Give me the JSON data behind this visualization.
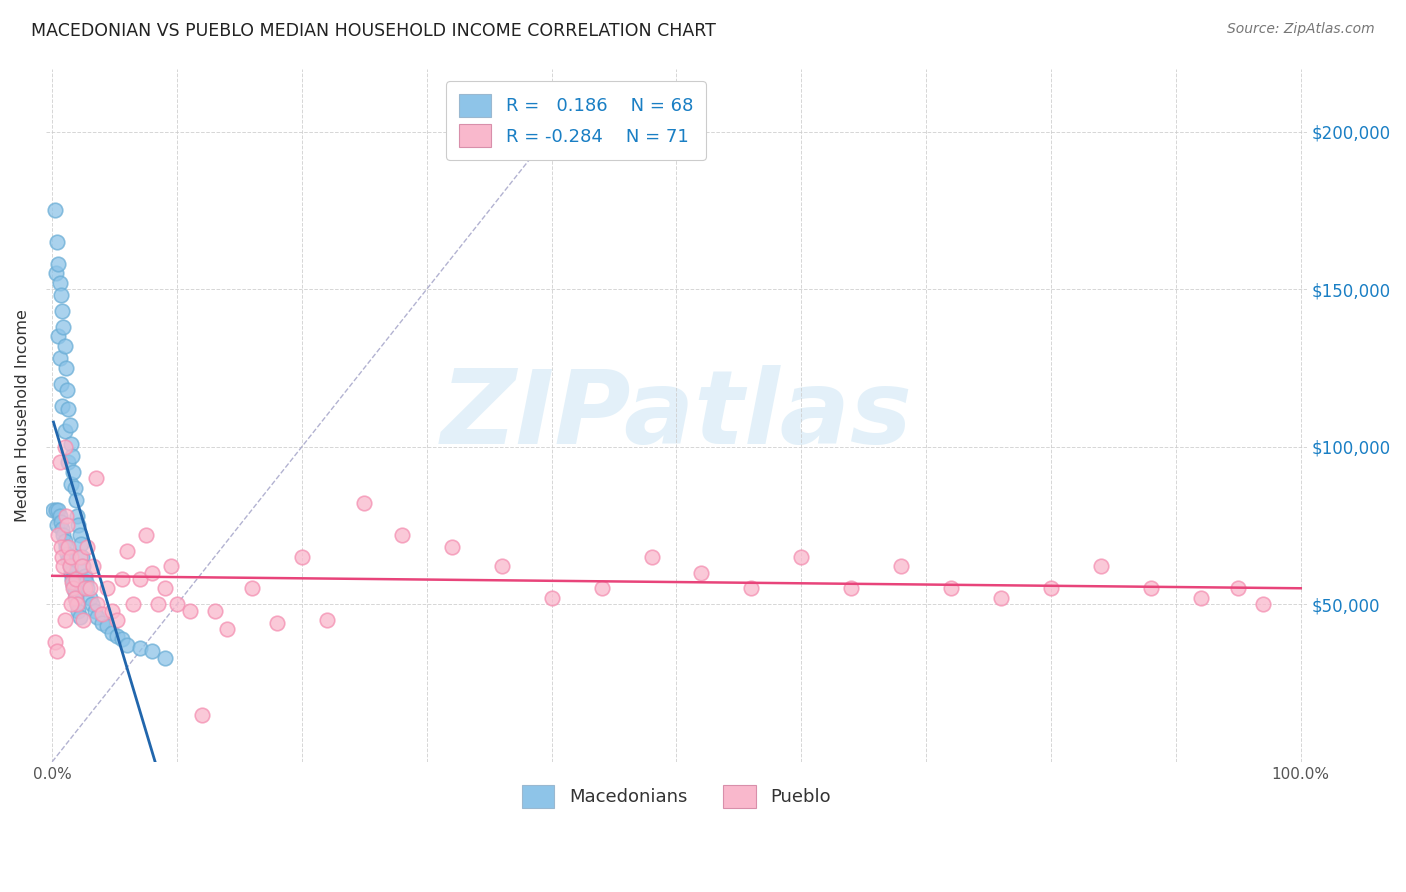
{
  "title": "MACEDONIAN VS PUEBLO MEDIAN HOUSEHOLD INCOME CORRELATION CHART",
  "source": "Source: ZipAtlas.com",
  "ylabel": "Median Household Income",
  "y_tick_labels": [
    "$50,000",
    "$100,000",
    "$150,000",
    "$200,000"
  ],
  "y_tick_values": [
    50000,
    100000,
    150000,
    200000
  ],
  "ylim": [
    0,
    220000
  ],
  "xlim": [
    -0.005,
    1.005
  ],
  "blue_R": 0.186,
  "blue_N": 68,
  "pink_R": -0.284,
  "pink_N": 71,
  "blue_color": "#8ec4e8",
  "blue_edge_color": "#6baed6",
  "blue_line_color": "#2166ac",
  "pink_color": "#f9b8cc",
  "pink_edge_color": "#f48fb1",
  "pink_line_color": "#e8447a",
  "legend_blue_label": "Macedonians",
  "legend_pink_label": "Pueblo",
  "watermark": "ZIPatlas",
  "grid_color": "#cccccc",
  "ref_line_color": "#aaaacc",
  "macedonian_x": [
    0.001,
    0.002,
    0.003,
    0.003,
    0.004,
    0.004,
    0.005,
    0.005,
    0.005,
    0.006,
    0.006,
    0.006,
    0.007,
    0.007,
    0.007,
    0.008,
    0.008,
    0.008,
    0.009,
    0.009,
    0.01,
    0.01,
    0.01,
    0.011,
    0.011,
    0.012,
    0.012,
    0.013,
    0.013,
    0.013,
    0.014,
    0.014,
    0.015,
    0.015,
    0.015,
    0.016,
    0.016,
    0.017,
    0.017,
    0.018,
    0.018,
    0.019,
    0.019,
    0.02,
    0.02,
    0.021,
    0.021,
    0.022,
    0.022,
    0.023,
    0.024,
    0.025,
    0.026,
    0.027,
    0.028,
    0.03,
    0.032,
    0.034,
    0.036,
    0.04,
    0.044,
    0.048,
    0.052,
    0.056,
    0.06,
    0.07,
    0.08,
    0.09
  ],
  "macedonian_y": [
    80000,
    175000,
    155000,
    80000,
    165000,
    75000,
    158000,
    135000,
    80000,
    152000,
    128000,
    78000,
    148000,
    120000,
    76000,
    143000,
    113000,
    74000,
    138000,
    72000,
    132000,
    105000,
    70000,
    125000,
    68000,
    118000,
    66000,
    112000,
    95000,
    64000,
    107000,
    62000,
    101000,
    88000,
    60000,
    97000,
    58000,
    92000,
    56000,
    87000,
    54000,
    83000,
    52000,
    78000,
    50000,
    75000,
    48000,
    72000,
    46000,
    69000,
    65000,
    62000,
    59000,
    57000,
    55000,
    52000,
    50000,
    48000,
    46000,
    44000,
    43000,
    41000,
    40000,
    39000,
    37000,
    36000,
    35000,
    33000
  ],
  "pueblo_x": [
    0.002,
    0.004,
    0.005,
    0.006,
    0.007,
    0.008,
    0.009,
    0.01,
    0.011,
    0.012,
    0.013,
    0.014,
    0.015,
    0.016,
    0.017,
    0.018,
    0.019,
    0.02,
    0.022,
    0.024,
    0.026,
    0.028,
    0.03,
    0.033,
    0.036,
    0.04,
    0.044,
    0.048,
    0.052,
    0.056,
    0.06,
    0.065,
    0.07,
    0.075,
    0.08,
    0.085,
    0.09,
    0.095,
    0.1,
    0.11,
    0.12,
    0.13,
    0.14,
    0.16,
    0.18,
    0.2,
    0.22,
    0.25,
    0.28,
    0.32,
    0.36,
    0.4,
    0.44,
    0.48,
    0.52,
    0.56,
    0.6,
    0.64,
    0.68,
    0.72,
    0.76,
    0.8,
    0.84,
    0.88,
    0.92,
    0.95,
    0.97,
    0.01,
    0.015,
    0.025,
    0.035
  ],
  "pueblo_y": [
    38000,
    35000,
    72000,
    95000,
    68000,
    65000,
    62000,
    100000,
    78000,
    75000,
    68000,
    62000,
    65000,
    57000,
    55000,
    52000,
    58000,
    50000,
    65000,
    62000,
    55000,
    68000,
    55000,
    62000,
    50000,
    47000,
    55000,
    48000,
    45000,
    58000,
    67000,
    50000,
    58000,
    72000,
    60000,
    50000,
    55000,
    62000,
    50000,
    48000,
    15000,
    48000,
    42000,
    55000,
    44000,
    65000,
    45000,
    82000,
    72000,
    68000,
    62000,
    52000,
    55000,
    65000,
    60000,
    55000,
    65000,
    55000,
    62000,
    55000,
    52000,
    55000,
    62000,
    55000,
    52000,
    55000,
    50000,
    45000,
    50000,
    45000,
    90000
  ]
}
